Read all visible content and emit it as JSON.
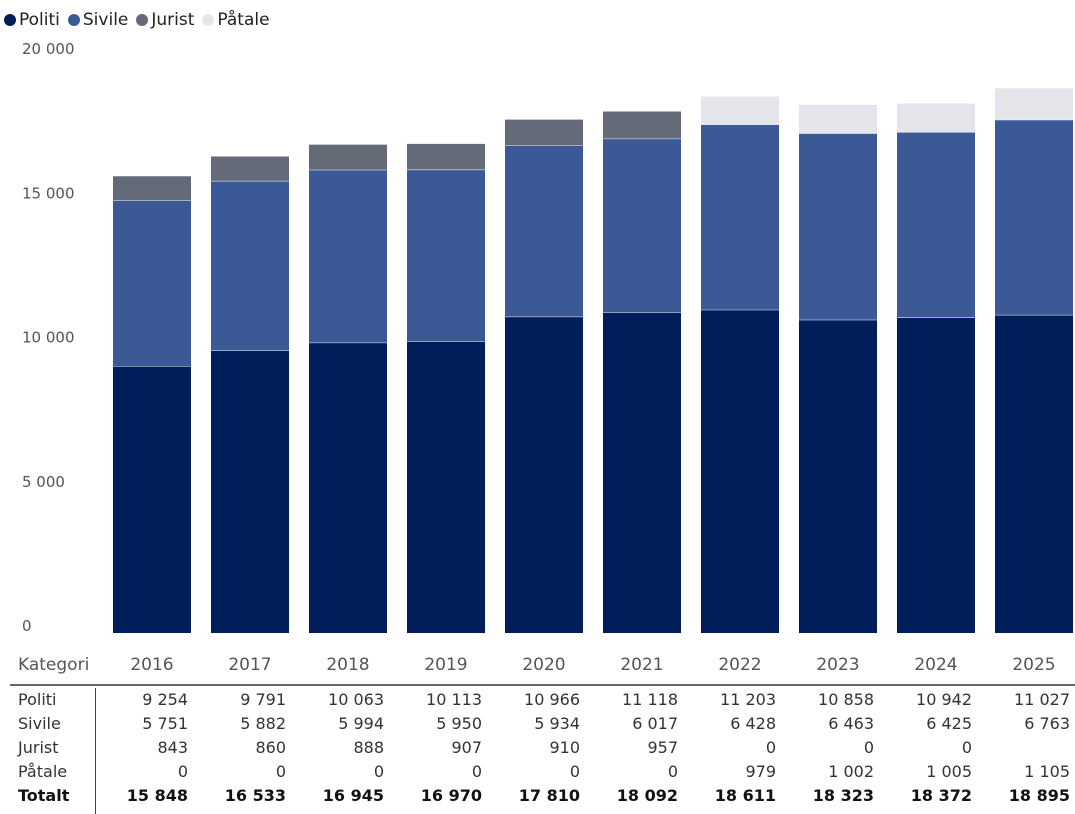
{
  "legend": [
    {
      "name": "Politi",
      "color": "#001e5a"
    },
    {
      "name": "Sivile",
      "color": "#3c5997"
    },
    {
      "name": "Jurist",
      "color": "#646a77"
    },
    {
      "name": "Påtale",
      "color": "#e4e5ea"
    }
  ],
  "chart_data": {
    "type": "bar",
    "stacked": true,
    "categories": [
      "2016",
      "2017",
      "2018",
      "2019",
      "2020",
      "2021",
      "2022",
      "2023",
      "2024",
      "2025"
    ],
    "series": [
      {
        "name": "Politi",
        "color": "#001e5a",
        "values": [
          9254,
          9791,
          10063,
          10113,
          10966,
          11118,
          11203,
          10858,
          10942,
          11027
        ]
      },
      {
        "name": "Sivile",
        "color": "#3c5997",
        "values": [
          5751,
          5882,
          5994,
          5950,
          5934,
          6017,
          6428,
          6463,
          6425,
          6763
        ]
      },
      {
        "name": "Jurist",
        "color": "#646a77",
        "values": [
          843,
          860,
          888,
          907,
          910,
          957,
          0,
          0,
          0,
          null
        ]
      },
      {
        "name": "Påtale",
        "color": "#e4e5ea",
        "values": [
          0,
          0,
          0,
          0,
          0,
          0,
          979,
          1002,
          1005,
          1105
        ]
      }
    ],
    "ylim": [
      0,
      20000
    ],
    "yticks": [
      0,
      5000,
      10000,
      15000,
      20000
    ],
    "ytick_labels": [
      "0",
      "5 000",
      "10 000",
      "15 000",
      "20 000"
    ],
    "grid": false
  },
  "table": {
    "header_label": "Kategori",
    "rows": [
      {
        "label": "Politi",
        "cells": [
          "9 254",
          "9 791",
          "10 063",
          "10 113",
          "10 966",
          "11 118",
          "11 203",
          "10 858",
          "10 942",
          "11 027"
        ]
      },
      {
        "label": "Sivile",
        "cells": [
          "5 751",
          "5 882",
          "5 994",
          "5 950",
          "5 934",
          "6 017",
          "6 428",
          "6 463",
          "6 425",
          "6 763"
        ]
      },
      {
        "label": "Jurist",
        "cells": [
          "843",
          "860",
          "888",
          "907",
          "910",
          "957",
          "0",
          "0",
          "0",
          ""
        ]
      },
      {
        "label": "Påtale",
        "cells": [
          "0",
          "0",
          "0",
          "0",
          "0",
          "0",
          "979",
          "1 002",
          "1 005",
          "1 105"
        ]
      }
    ],
    "total": {
      "label": "Totalt",
      "cells": [
        "15 848",
        "16 533",
        "16 945",
        "16 970",
        "17 810",
        "18 092",
        "18 611",
        "18 323",
        "18 372",
        "18 895"
      ]
    }
  }
}
